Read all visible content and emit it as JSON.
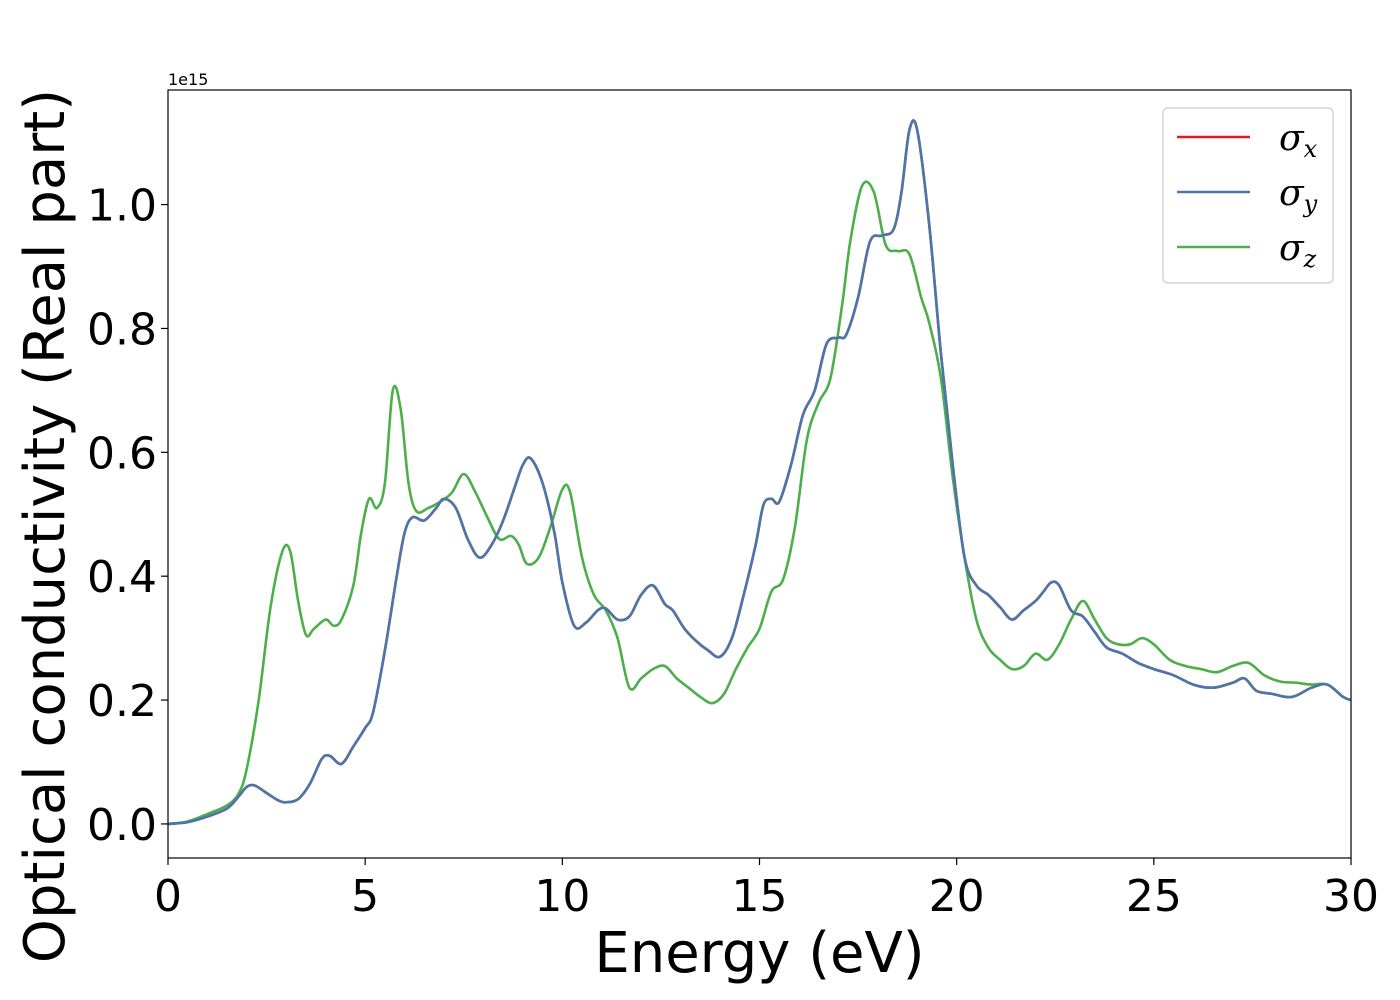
{
  "chart_data": {
    "type": "line",
    "title": "",
    "xlabel": "Energy (eV)",
    "ylabel": "Optical conductivity (Real part)",
    "y_offset_label": "1e15",
    "xlim": [
      0,
      30
    ],
    "ylim": [
      -0.055,
      1.185
    ],
    "xticks": [
      0,
      5,
      10,
      15,
      20,
      25,
      30
    ],
    "xtick_labels": [
      "0",
      "5",
      "10",
      "15",
      "20",
      "25",
      "30"
    ],
    "yticks": [
      0.0,
      0.2,
      0.4,
      0.6,
      0.8,
      1.0
    ],
    "ytick_labels": [
      "0.0",
      "0.2",
      "0.4",
      "0.6",
      "0.8",
      "1.0"
    ],
    "grid": false,
    "legend_position": "top-right",
    "series": [
      {
        "name": "σx",
        "symbol": "σ",
        "subscript": "x",
        "color": "#e41a1c",
        "x": [
          0,
          0.5,
          1.0,
          1.5,
          1.8,
          2.0,
          2.2,
          2.5,
          2.8,
          3.0,
          3.3,
          3.6,
          3.9,
          4.1,
          4.4,
          4.7,
          5.0,
          5.2,
          5.5,
          5.8,
          6.0,
          6.2,
          6.5,
          6.8,
          7.0,
          7.3,
          7.6,
          7.9,
          8.2,
          8.5,
          8.8,
          9.0,
          9.2,
          9.5,
          9.8,
          10.0,
          10.3,
          10.6,
          10.9,
          11.1,
          11.4,
          11.7,
          12.0,
          12.3,
          12.6,
          12.8,
          13.1,
          13.4,
          13.7,
          14.0,
          14.3,
          14.6,
          14.9,
          15.1,
          15.3,
          15.5,
          15.8,
          16.1,
          16.4,
          16.7,
          17.0,
          17.2,
          17.5,
          17.8,
          18.1,
          18.4,
          18.6,
          18.8,
          19.0,
          19.3,
          19.6,
          19.9,
          20.2,
          20.5,
          20.8,
          21.1,
          21.4,
          21.7,
          22.0,
          22.2,
          22.4,
          22.6,
          22.9,
          23.2,
          23.5,
          23.8,
          24.2,
          24.6,
          25.0,
          25.5,
          26.0,
          26.5,
          27.0,
          27.3,
          27.6,
          28.0,
          28.5,
          29.0,
          29.4,
          29.8,
          30.0
        ],
        "y": [
          0.0,
          0.003,
          0.012,
          0.025,
          0.045,
          0.06,
          0.062,
          0.05,
          0.038,
          0.035,
          0.04,
          0.065,
          0.105,
          0.11,
          0.097,
          0.125,
          0.155,
          0.18,
          0.28,
          0.4,
          0.47,
          0.495,
          0.49,
          0.51,
          0.525,
          0.51,
          0.46,
          0.43,
          0.45,
          0.49,
          0.545,
          0.58,
          0.59,
          0.55,
          0.47,
          0.39,
          0.32,
          0.325,
          0.345,
          0.348,
          0.33,
          0.335,
          0.37,
          0.385,
          0.355,
          0.345,
          0.315,
          0.295,
          0.28,
          0.27,
          0.3,
          0.37,
          0.45,
          0.515,
          0.525,
          0.52,
          0.58,
          0.66,
          0.7,
          0.775,
          0.785,
          0.79,
          0.85,
          0.94,
          0.95,
          0.96,
          1.02,
          1.12,
          1.12,
          0.97,
          0.76,
          0.58,
          0.43,
          0.385,
          0.37,
          0.35,
          0.33,
          0.345,
          0.36,
          0.375,
          0.39,
          0.385,
          0.345,
          0.335,
          0.31,
          0.285,
          0.275,
          0.26,
          0.25,
          0.24,
          0.225,
          0.22,
          0.228,
          0.235,
          0.215,
          0.21,
          0.205,
          0.22,
          0.225,
          0.205,
          0.2
        ]
      },
      {
        "name": "σy",
        "symbol": "σ",
        "subscript": "y",
        "color": "#4a77ab",
        "x": [
          0,
          0.5,
          1.0,
          1.5,
          1.8,
          2.0,
          2.2,
          2.5,
          2.8,
          3.0,
          3.3,
          3.6,
          3.9,
          4.1,
          4.4,
          4.7,
          5.0,
          5.2,
          5.5,
          5.8,
          6.0,
          6.2,
          6.5,
          6.8,
          7.0,
          7.3,
          7.6,
          7.9,
          8.2,
          8.5,
          8.8,
          9.0,
          9.2,
          9.5,
          9.8,
          10.0,
          10.3,
          10.6,
          10.9,
          11.1,
          11.4,
          11.7,
          12.0,
          12.3,
          12.6,
          12.8,
          13.1,
          13.4,
          13.7,
          14.0,
          14.3,
          14.6,
          14.9,
          15.1,
          15.3,
          15.5,
          15.8,
          16.1,
          16.4,
          16.7,
          17.0,
          17.2,
          17.5,
          17.8,
          18.1,
          18.4,
          18.6,
          18.8,
          19.0,
          19.3,
          19.6,
          19.9,
          20.2,
          20.5,
          20.8,
          21.1,
          21.4,
          21.7,
          22.0,
          22.2,
          22.4,
          22.6,
          22.9,
          23.2,
          23.5,
          23.8,
          24.2,
          24.6,
          25.0,
          25.5,
          26.0,
          26.5,
          27.0,
          27.3,
          27.6,
          28.0,
          28.5,
          29.0,
          29.4,
          29.8,
          30.0
        ],
        "y": [
          0.0,
          0.003,
          0.012,
          0.025,
          0.045,
          0.06,
          0.062,
          0.05,
          0.038,
          0.035,
          0.04,
          0.065,
          0.105,
          0.11,
          0.097,
          0.125,
          0.155,
          0.18,
          0.28,
          0.4,
          0.47,
          0.495,
          0.49,
          0.51,
          0.525,
          0.51,
          0.46,
          0.43,
          0.45,
          0.49,
          0.545,
          0.58,
          0.59,
          0.55,
          0.47,
          0.39,
          0.32,
          0.325,
          0.345,
          0.348,
          0.33,
          0.335,
          0.37,
          0.385,
          0.355,
          0.345,
          0.315,
          0.295,
          0.28,
          0.27,
          0.3,
          0.37,
          0.45,
          0.515,
          0.525,
          0.52,
          0.58,
          0.66,
          0.7,
          0.775,
          0.785,
          0.79,
          0.85,
          0.94,
          0.95,
          0.96,
          1.02,
          1.12,
          1.12,
          0.97,
          0.76,
          0.58,
          0.43,
          0.385,
          0.37,
          0.35,
          0.33,
          0.345,
          0.36,
          0.375,
          0.39,
          0.385,
          0.345,
          0.335,
          0.31,
          0.285,
          0.275,
          0.26,
          0.25,
          0.24,
          0.225,
          0.22,
          0.228,
          0.235,
          0.215,
          0.21,
          0.205,
          0.22,
          0.225,
          0.205,
          0.2
        ]
      },
      {
        "name": "σz",
        "symbol": "σ",
        "subscript": "z",
        "color": "#4daf4a",
        "x": [
          0,
          0.5,
          1.0,
          1.5,
          1.8,
          2.0,
          2.3,
          2.6,
          2.9,
          3.1,
          3.3,
          3.5,
          3.7,
          4.0,
          4.2,
          4.4,
          4.7,
          4.9,
          5.1,
          5.3,
          5.5,
          5.7,
          5.9,
          6.1,
          6.3,
          6.6,
          6.9,
          7.2,
          7.5,
          7.8,
          8.1,
          8.4,
          8.7,
          8.9,
          9.1,
          9.4,
          9.7,
          10.0,
          10.2,
          10.5,
          10.8,
          11.1,
          11.4,
          11.7,
          12.0,
          12.3,
          12.6,
          12.9,
          13.2,
          13.5,
          13.8,
          14.1,
          14.4,
          14.7,
          15.0,
          15.3,
          15.6,
          15.9,
          16.2,
          16.5,
          16.8,
          17.1,
          17.3,
          17.6,
          17.9,
          18.2,
          18.5,
          18.8,
          19.1,
          19.3,
          19.6,
          19.9,
          20.2,
          20.5,
          20.8,
          21.1,
          21.4,
          21.7,
          22.0,
          22.3,
          22.6,
          22.9,
          23.2,
          23.5,
          23.8,
          24.1,
          24.4,
          24.7,
          25.0,
          25.4,
          25.8,
          26.2,
          26.6,
          27.0,
          27.4,
          27.8,
          28.2,
          28.6,
          29.0,
          29.4,
          29.8,
          30.0
        ],
        "y": [
          0.0,
          0.004,
          0.016,
          0.03,
          0.05,
          0.09,
          0.2,
          0.35,
          0.44,
          0.44,
          0.36,
          0.305,
          0.315,
          0.33,
          0.32,
          0.33,
          0.385,
          0.47,
          0.525,
          0.51,
          0.55,
          0.7,
          0.67,
          0.55,
          0.505,
          0.51,
          0.52,
          0.535,
          0.565,
          0.535,
          0.495,
          0.46,
          0.465,
          0.45,
          0.42,
          0.43,
          0.48,
          0.54,
          0.535,
          0.43,
          0.37,
          0.345,
          0.3,
          0.22,
          0.235,
          0.25,
          0.255,
          0.235,
          0.22,
          0.205,
          0.195,
          0.21,
          0.25,
          0.285,
          0.315,
          0.375,
          0.395,
          0.48,
          0.62,
          0.68,
          0.72,
          0.84,
          0.94,
          1.03,
          1.02,
          0.935,
          0.925,
          0.92,
          0.85,
          0.81,
          0.72,
          0.56,
          0.43,
          0.33,
          0.285,
          0.265,
          0.25,
          0.255,
          0.275,
          0.265,
          0.29,
          0.33,
          0.36,
          0.33,
          0.3,
          0.29,
          0.29,
          0.3,
          0.29,
          0.265,
          0.255,
          0.25,
          0.245,
          0.255,
          0.26,
          0.24,
          0.23,
          0.228,
          0.225,
          0.225,
          0.205,
          0.2
        ]
      }
    ]
  }
}
